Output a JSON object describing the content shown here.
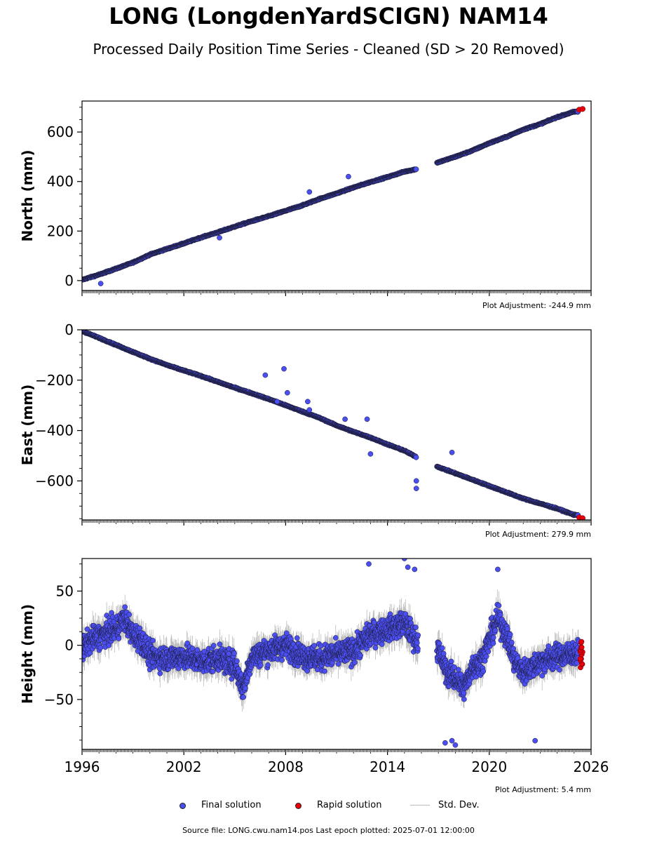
{
  "figure": {
    "title": "LONG (LongdenYardSCIGN) NAM14",
    "subtitle": "Processed Daily Position Time Series - Cleaned (SD > 20 Removed)",
    "source_note": "Source file: LONG.cwu.nam14.pos  Last epoch plotted: 2025-07-01 12:00:00"
  },
  "legend": {
    "final_label": "Final solution",
    "rapid_label": "Rapid solution",
    "std_label": "Std. Dev."
  },
  "colors": {
    "final": "#4b4ef0",
    "rapid": "#e8000b",
    "std": "#bbbbbb",
    "marker_edge": "#1a1a2e"
  },
  "chart_data": [
    {
      "type": "scatter",
      "title": "",
      "xlabel": "",
      "ylabel": "North (mm)",
      "xlim": [
        1996,
        2026
      ],
      "ylim": [
        -40,
        725
      ],
      "yticks": [
        0,
        200,
        400,
        600
      ],
      "ytick_labels": [
        "0",
        "200",
        "400",
        "600"
      ],
      "adjustment": "Plot Adjustment: -244.9 mm",
      "data_gap": [
        2015.7,
        2016.9
      ],
      "series": [
        {
          "name": "Final solution",
          "x": [
            1996.0,
            1997.0,
            1998.0,
            1999.0,
            2000.0,
            2001.0,
            2002.0,
            2003.0,
            2004.0,
            2005.0,
            2006.0,
            2007.0,
            2008.0,
            2009.0,
            2010.0,
            2011.0,
            2012.0,
            2013.0,
            2014.0,
            2015.0,
            2015.7,
            2017.0,
            2018.0,
            2019.0,
            2020.0,
            2021.0,
            2022.0,
            2023.0,
            2024.0,
            2025.0
          ],
          "y": [
            3,
            24,
            48,
            73,
            105,
            128,
            150,
            174,
            195,
            218,
            240,
            260,
            282,
            304,
            330,
            352,
            376,
            398,
            418,
            440,
            450,
            478,
            500,
            525,
            555,
            580,
            610,
            632,
            660,
            682
          ]
        },
        {
          "name": "Rapid solution",
          "x": [
            2025.3,
            2025.5
          ],
          "y": [
            690,
            693
          ]
        }
      ],
      "outliers": {
        "x": [
          1997.1,
          2009.4,
          2004.1,
          2011.7
        ],
        "y": [
          -12,
          358,
          173,
          420
        ]
      }
    },
    {
      "type": "scatter",
      "title": "",
      "xlabel": "",
      "ylabel": "East (mm)",
      "xlim": [
        1996,
        2026
      ],
      "ylim": [
        -755,
        0
      ],
      "yticks": [
        0,
        -200,
        -400,
        -600
      ],
      "ytick_labels": [
        "0",
        "−200",
        "−400",
        "−600"
      ],
      "adjustment": "Plot Adjustment: 279.9 mm",
      "data_gap": [
        2015.7,
        2016.9
      ],
      "series": [
        {
          "name": "Final solution",
          "x": [
            1996.0,
            1997.0,
            1998.0,
            1999.0,
            2000.0,
            2001.0,
            2002.0,
            2003.0,
            2004.0,
            2005.0,
            2006.0,
            2007.0,
            2008.0,
            2009.0,
            2010.0,
            2011.0,
            2012.0,
            2013.0,
            2014.0,
            2015.0,
            2015.7,
            2017.0,
            2018.0,
            2019.0,
            2020.0,
            2021.0,
            2022.0,
            2023.0,
            2024.0,
            2025.0
          ],
          "y": [
            -5,
            -32,
            -60,
            -88,
            -115,
            -140,
            -162,
            -183,
            -207,
            -230,
            -252,
            -275,
            -300,
            -325,
            -350,
            -380,
            -405,
            -428,
            -455,
            -480,
            -505,
            -545,
            -570,
            -595,
            -620,
            -645,
            -670,
            -690,
            -710,
            -735
          ]
        },
        {
          "name": "Rapid solution",
          "x": [
            2025.3,
            2025.5
          ],
          "y": [
            -745,
            -748
          ]
        }
      ],
      "outliers": {
        "x": [
          2006.8,
          2007.5,
          2007.9,
          2008.1,
          2009.3,
          2009.4,
          2012.8,
          2015.7,
          2015.7,
          2017.8,
          2011.5,
          2013.0
        ],
        "y": [
          -180,
          -285,
          -155,
          -250,
          -285,
          -318,
          -355,
          -600,
          -630,
          -487,
          -355,
          -493
        ]
      }
    },
    {
      "type": "scatter",
      "title": "",
      "xlabel": "",
      "ylabel": "Height (mm)",
      "xlim": [
        1996,
        2026
      ],
      "ylim": [
        -96,
        80
      ],
      "yticks": [
        50,
        0,
        -50
      ],
      "ytick_labels": [
        "50",
        "0",
        "−50"
      ],
      "xticks": [
        1996,
        2002,
        2008,
        2014,
        2020,
        2026
      ],
      "xtick_labels": [
        "1996",
        "2002",
        "2008",
        "2014",
        "2020",
        "2026"
      ],
      "adjustment": "Plot Adjustment: 5.4 mm",
      "data_gap": [
        2015.8,
        2016.9
      ],
      "series": [
        {
          "name": "Final solution",
          "x": [
            1996.0,
            1996.5,
            1997.0,
            1997.5,
            1998.0,
            1998.5,
            1999.0,
            1999.5,
            2000.0,
            2001.0,
            2002.0,
            2003.0,
            2004.0,
            2005.0,
            2005.5,
            2006.0,
            2007.0,
            2008.0,
            2009.0,
            2010.0,
            2011.0,
            2012.0,
            2013.0,
            2014.0,
            2015.0,
            2015.7,
            2017.0,
            2017.5,
            2018.0,
            2018.5,
            2019.0,
            2019.5,
            2020.0,
            2020.5,
            2021.0,
            2021.5,
            2022.0,
            2022.5,
            2023.0,
            2024.0,
            2025.0
          ],
          "y": [
            -5,
            5,
            8,
            12,
            15,
            25,
            10,
            5,
            -10,
            -12,
            -10,
            -15,
            -12,
            -18,
            -40,
            -10,
            -5,
            0,
            -10,
            -12,
            -8,
            -5,
            10,
            15,
            20,
            5,
            -5,
            -25,
            -30,
            -40,
            -20,
            -15,
            5,
            25,
            10,
            -15,
            -25,
            -20,
            -15,
            -10,
            -8
          ]
        },
        {
          "name": "Rapid solution",
          "x": [
            2025.3,
            2025.4,
            2025.5,
            2025.6
          ],
          "y": [
            -15,
            -10,
            -5,
            0
          ]
        }
      ],
      "outliers": {
        "x": [
          2012.9,
          2015.0,
          2015.2,
          2015.6,
          2017.4,
          2017.8,
          2018.0,
          2020.5,
          2022.7
        ],
        "y": [
          75,
          80,
          72,
          70,
          -90,
          -88,
          -92,
          70,
          -88
        ]
      }
    }
  ]
}
